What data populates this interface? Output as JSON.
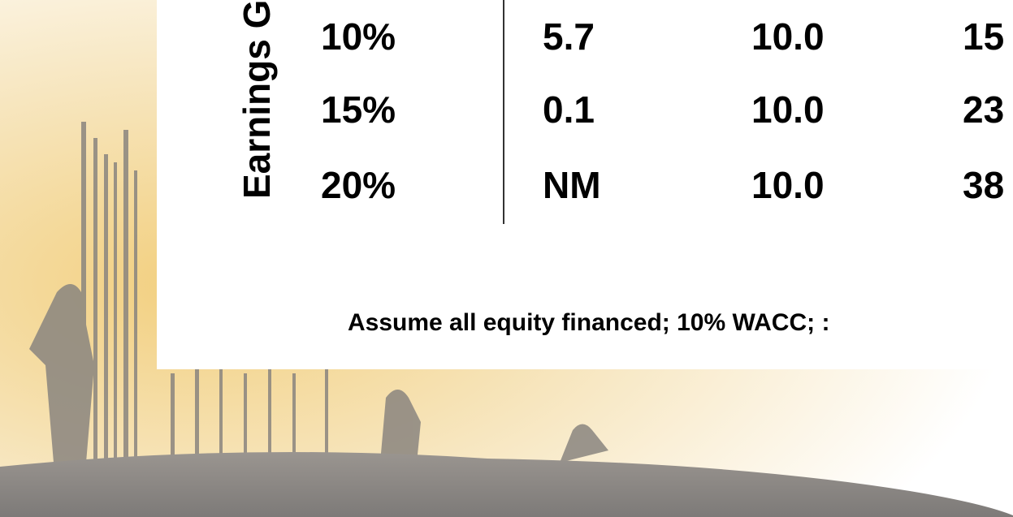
{
  "side_label": "Earnings G",
  "table": {
    "rows": [
      [
        "10%",
        "5.7",
        "10.0",
        "15"
      ],
      [
        "15%",
        "0.1",
        "10.0",
        "23"
      ],
      [
        "20%",
        "NM",
        "10.0",
        "38"
      ]
    ]
  },
  "note": "Assume all equity financed; 10% WACC; :"
}
